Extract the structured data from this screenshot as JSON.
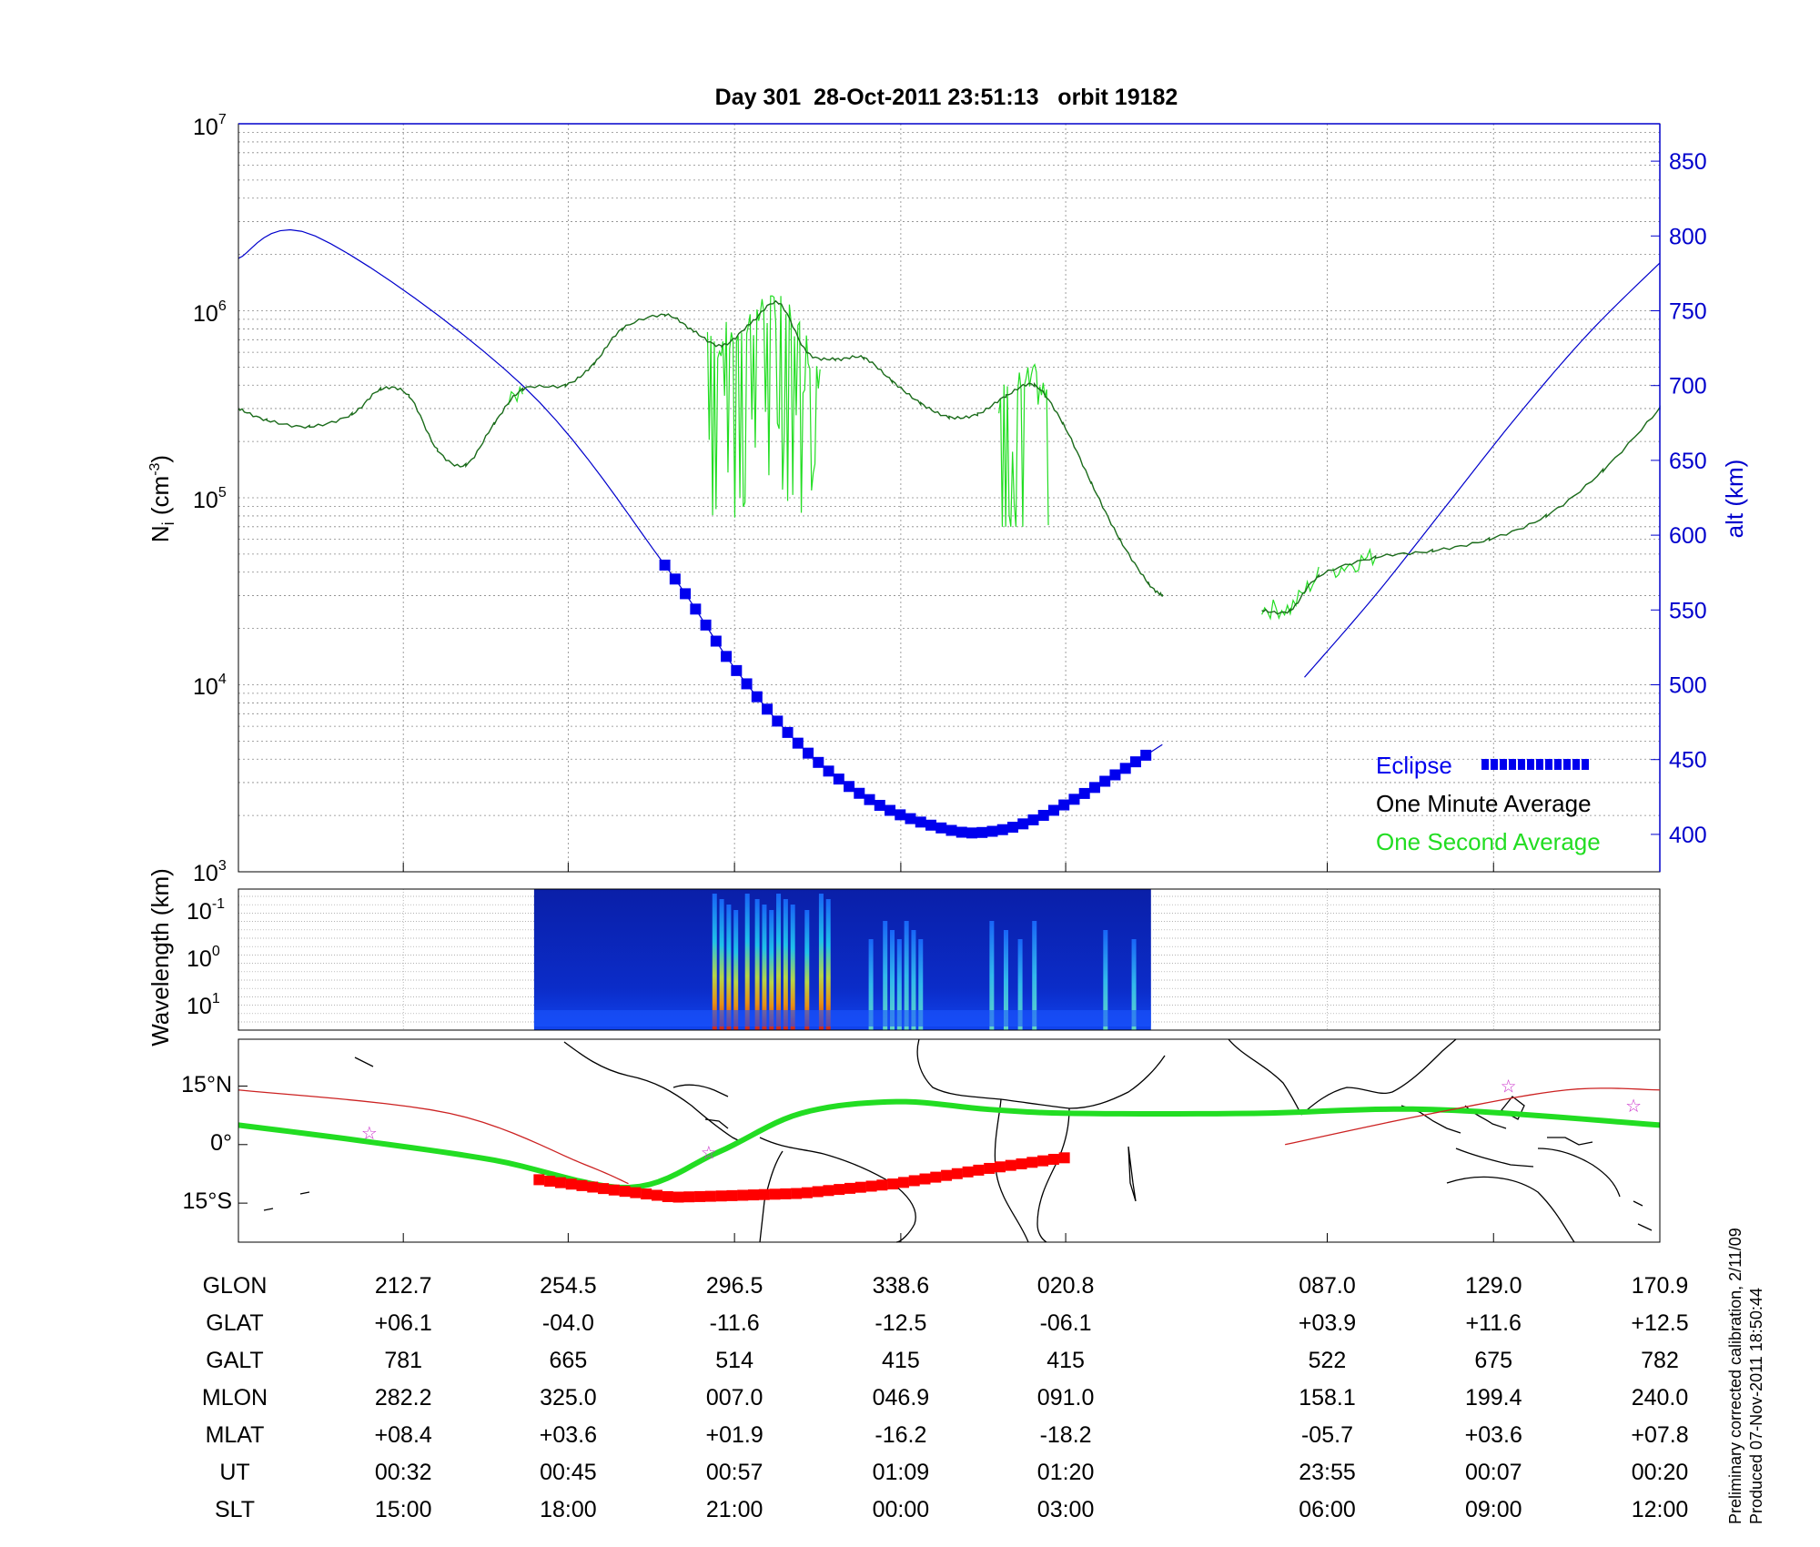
{
  "title": "Day 301  28-Oct-2011 23:51:13   orbit 19182",
  "colors": {
    "altitude": "#0000cc",
    "minute_avg": "#1a6b1a",
    "second_avg": "#22dd22",
    "eclipse": "#0000ee",
    "orbit_eclipse": "#ff0000",
    "orbit_track": "#22dd22",
    "star": "#cc33cc"
  },
  "legend": {
    "eclipse": "Eclipse",
    "minute": "One Minute Average",
    "second": "One Second Average"
  },
  "chart_data": [
    {
      "type": "line",
      "panel": "ion density and altitude",
      "ylabel_left": "Ni (cm-3)",
      "ylabel_right": "alt (km)",
      "y_scale_left": "log",
      "ylim_left": [
        1000,
        10000000
      ],
      "yticks_left": [
        "10^3",
        "10^4",
        "10^5",
        "10^6",
        "10^7"
      ],
      "ylim_right": [
        375,
        875
      ],
      "yticks_right": [
        400,
        450,
        500,
        550,
        600,
        650,
        700,
        750,
        800,
        850
      ],
      "x_ticks_SLT": [
        "15:00",
        "18:00",
        "21:00",
        "00:00",
        "03:00",
        "06:00",
        "09:00",
        "12:00"
      ],
      "grid": true,
      "legend_position": "bottom-right",
      "series": [
        {
          "name": "One Minute Average",
          "x_frac": [
            0.0,
            0.02,
            0.05,
            0.08,
            0.1,
            0.12,
            0.14,
            0.16,
            0.18,
            0.2,
            0.23,
            0.25,
            0.27,
            0.3,
            0.32,
            0.34,
            0.36,
            0.38,
            0.4,
            0.42,
            0.44,
            0.46,
            0.48,
            0.5,
            0.52,
            0.54,
            0.56,
            0.58,
            0.6,
            0.62,
            0.64,
            0.65,
            null,
            0.72,
            0.74,
            0.76,
            0.8,
            0.84,
            0.88,
            0.92,
            0.96,
            1.0
          ],
          "ni": [
            300000,
            260000,
            240000,
            280000,
            380000,
            350000,
            180000,
            150000,
            250000,
            380000,
            400000,
            520000,
            800000,
            950000,
            780000,
            650000,
            850000,
            1100000,
            600000,
            550000,
            560000,
            420000,
            320000,
            270000,
            280000,
            350000,
            400000,
            250000,
            120000,
            60000,
            35000,
            30000,
            null,
            25000,
            25000,
            38000,
            48000,
            52000,
            60000,
            80000,
            140000,
            300000
          ]
        },
        {
          "name": "One Second Average",
          "region_x_frac": [
            [
              0.33,
              0.41
            ],
            [
              0.535,
              0.57
            ]
          ],
          "min_ni": 70000,
          "max_ni": 1200000
        },
        {
          "name": "alt",
          "x_frac": [
            0.0,
            0.054,
            0.2,
            0.3,
            0.35,
            0.4,
            0.45,
            0.5,
            0.53,
            0.56,
            0.6,
            0.65,
            0.7,
            0.75,
            0.8,
            0.85,
            0.9,
            0.95,
            1.0
          ],
          "alt_km": [
            785,
            800,
            700,
            580,
            510,
            455,
            420,
            403,
            402,
            410,
            430,
            460,
            null,
            505,
            560,
            620,
            680,
            735,
            782
          ]
        },
        {
          "name": "Eclipse",
          "x_frac_range": [
            0.3,
            0.642
          ]
        }
      ]
    },
    {
      "type": "heatmap",
      "panel": "wavelength spectrogram",
      "ylabel": "Wavelength (km)",
      "yticks": [
        "10^-1",
        "10^0",
        "10^1"
      ],
      "x_frac_range": [
        0.208,
        0.642
      ],
      "bursts_x_frac": [
        0.335,
        0.34,
        0.345,
        0.35,
        0.358,
        0.365,
        0.37,
        0.375,
        0.38,
        0.385,
        0.39,
        0.4,
        0.41,
        0.415,
        0.445,
        0.455,
        0.46,
        0.465,
        0.47,
        0.475,
        0.48,
        0.53,
        0.54,
        0.55,
        0.56,
        0.61,
        0.63
      ]
    },
    {
      "type": "map",
      "panel": "orbit track",
      "yticks": [
        "15°N",
        "0°",
        "15°S"
      ],
      "ylim_deg": [
        -25,
        27
      ],
      "xlim_deg_east": [
        212.7,
        530.9
      ],
      "ground_track_glon": [
        212.7,
        230,
        254.5,
        280,
        296.5,
        310,
        320,
        338.6,
        360,
        380.8,
        400,
        430,
        447.0,
        470,
        489.0,
        510,
        530.9
      ],
      "ground_track_glat": [
        6.1,
        3,
        -4.0,
        -9,
        -11.6,
        -13.5,
        -13.2,
        -12.5,
        -10,
        -6.1,
        -3,
        0,
        3.9,
        8,
        11.6,
        12.8,
        12.5
      ],
      "eclipse_glon_range": [
        280,
        399
      ],
      "magnetic_equator_mlat0_glon": [
        212.7,
        240,
        270,
        300,
        320,
        338.6,
        360,
        380.8,
        400,
        440,
        480,
        530.9
      ],
      "magnetic_equator_glat": [
        5,
        1,
        -4,
        -11,
        -2,
        8,
        11,
        9,
        8,
        8,
        9,
        5
      ],
      "stars_glon": [
        242,
        318,
        497,
        525
      ],
      "stars_glat": [
        3,
        -2,
        15,
        10
      ]
    },
    {
      "type": "table",
      "panel": "orbit parameters",
      "row_labels": [
        "GLON",
        "GLAT",
        "GALT",
        "MLON",
        "MLAT",
        "UT",
        "SLT"
      ],
      "columns": [
        [
          "212.7",
          "+06.1",
          "781",
          "282.2",
          "+08.4",
          "00:32",
          "15:00"
        ],
        [
          "254.5",
          "-04.0",
          "665",
          "325.0",
          "+03.6",
          "00:45",
          "18:00"
        ],
        [
          "296.5",
          "-11.6",
          "514",
          "007.0",
          "+01.9",
          "00:57",
          "21:00"
        ],
        [
          "338.6",
          "-12.5",
          "415",
          "046.9",
          "-16.2",
          "01:09",
          "00:00"
        ],
        [
          "020.8",
          "-06.1",
          "415",
          "091.0",
          "-18.2",
          "01:20",
          "03:00"
        ],
        [
          "087.0",
          "+03.9",
          "522",
          "158.1",
          "-05.7",
          "23:55",
          "06:00"
        ],
        [
          "129.0",
          "+11.6",
          "675",
          "199.4",
          "+03.6",
          "00:07",
          "09:00"
        ],
        [
          "170.9",
          "+12.5",
          "782",
          "240.0",
          "+07.8",
          "00:20",
          "12:00"
        ]
      ]
    }
  ],
  "notes": {
    "calibration": "Preliminary corrected calibration, 2/11/09",
    "produced": "Produced 07-Nov-2011 18:50:44"
  }
}
